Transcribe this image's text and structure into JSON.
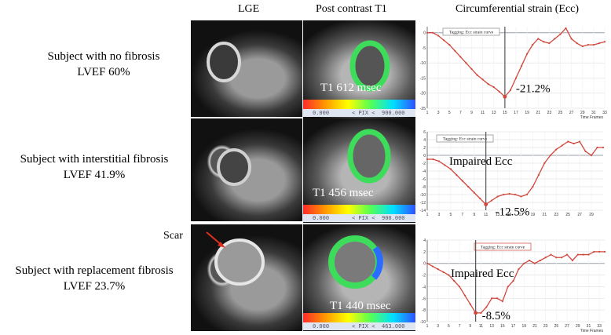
{
  "columns": {
    "lge": "LGE",
    "post_t1": "Post contrast T1",
    "ecc": "Circumferential strain (Ecc)"
  },
  "rows": [
    {
      "subject": "Subject with no fibrosis",
      "lvef": "LVEF 60%",
      "t1": "T1 612 msec",
      "pix_left": "0.000",
      "pix_mid": "< PIX <",
      "pix_right": "900.000"
    },
    {
      "subject": "Subject with interstitial fibrosis",
      "lvef": "LVEF 41.9%",
      "t1": "T1 456 msec",
      "pix_left": "0.000",
      "pix_mid": "< PIX <",
      "pix_right": "900.000"
    },
    {
      "subject": "Subject with replacement fibrosis",
      "lvef": "LVEF 23.7%",
      "t1": "T1 440 msec",
      "pix_left": "0.000",
      "pix_mid": "< PIX <",
      "pix_right": "463.000"
    }
  ],
  "scar_label": "Scar",
  "colors": {
    "curve": "#d0483c",
    "myocardium_ring": "#3ddc5a",
    "scar_arrow": "#e0301e"
  },
  "chart_data": [
    {
      "type": "line",
      "title": "Tagging: Ecc strain curve",
      "x": [
        1,
        2,
        3,
        4,
        5,
        6,
        7,
        8,
        9,
        10,
        11,
        12,
        13,
        14,
        15,
        16,
        17,
        18,
        19,
        20,
        21,
        22,
        23,
        24,
        25,
        26,
        27,
        28,
        29,
        30,
        31,
        32,
        33
      ],
      "values": [
        0,
        0,
        -1,
        -2.5,
        -4,
        -6,
        -8,
        -10,
        -12,
        -14,
        -15.5,
        -17,
        -18,
        -19.5,
        -21.2,
        -19,
        -15,
        -11,
        -7,
        -4,
        -2,
        -3,
        -3.5,
        -2,
        -0.5,
        1.5,
        -2,
        -3.5,
        -4.5,
        -4,
        -4,
        -3.5,
        -3
      ],
      "ylim": [
        -25,
        2
      ],
      "yticks": [
        0,
        -5,
        -10,
        -15,
        -20,
        -25
      ],
      "xticks": [
        1,
        3,
        5,
        7,
        9,
        11,
        13,
        15,
        17,
        19,
        21,
        23,
        25,
        27,
        29,
        31,
        33
      ],
      "xlabel": "Time Frames",
      "marker_x": 15,
      "annotation": "-21.2%"
    },
    {
      "type": "line",
      "title": "Tagging: Ecc strain curve",
      "x": [
        1,
        2,
        3,
        4,
        5,
        6,
        7,
        8,
        9,
        10,
        11,
        12,
        13,
        14,
        15,
        16,
        17,
        18,
        19,
        20,
        21,
        22,
        23,
        24,
        25,
        26,
        27,
        28,
        29,
        30,
        31
      ],
      "values": [
        -1,
        -1,
        -1.5,
        -2.5,
        -3.5,
        -5,
        -6.5,
        -8,
        -9.5,
        -11,
        -12.5,
        -11.5,
        -10.5,
        -10,
        -9.8,
        -10,
        -10.5,
        -10,
        -8,
        -5,
        -2,
        0,
        1.5,
        2.5,
        3.5,
        3,
        3.5,
        1,
        0,
        2,
        2
      ],
      "ylim": [
        -14,
        6
      ],
      "yticks": [
        6,
        4,
        2,
        0,
        -2,
        -4,
        -6,
        -8,
        -10,
        -12,
        -14
      ],
      "xticks": [
        1,
        3,
        5,
        7,
        9,
        11,
        13,
        15,
        17,
        19,
        21,
        23,
        25,
        27,
        29
      ],
      "marker_x": 11,
      "annotation": "-12.5%",
      "label": "Impaired Ecc"
    },
    {
      "type": "line",
      "title": "Tagging: Ecc strain curve",
      "x": [
        1,
        2,
        3,
        4,
        5,
        6,
        7,
        8,
        9,
        10,
        11,
        12,
        13,
        14,
        15,
        16,
        17,
        18,
        19,
        20,
        21,
        22,
        23,
        24,
        25,
        26,
        27,
        28,
        29,
        30,
        31,
        32,
        33,
        34
      ],
      "values": [
        0,
        -0.5,
        -1,
        -1.5,
        -2,
        -3,
        -4,
        -5.5,
        -7,
        -8.5,
        -8.5,
        -7.5,
        -6,
        -6,
        -6.5,
        -4,
        -3,
        -1,
        0,
        0.5,
        0,
        0.5,
        1,
        1.5,
        1,
        1,
        1.5,
        0.5,
        1.5,
        1.5,
        1.5,
        2,
        2,
        2
      ],
      "ylim": [
        -10,
        4
      ],
      "yticks": [
        4,
        2,
        0,
        -2,
        -4,
        -6,
        -8,
        -10
      ],
      "xticks": [
        1,
        3,
        5,
        7,
        9,
        11,
        13,
        15,
        17,
        19,
        21,
        23,
        25,
        27,
        29,
        31,
        33
      ],
      "xlabel": "Time Frames",
      "marker_x": 10,
      "annotation": "-8.5%",
      "label": "Impaired Ecc"
    }
  ]
}
